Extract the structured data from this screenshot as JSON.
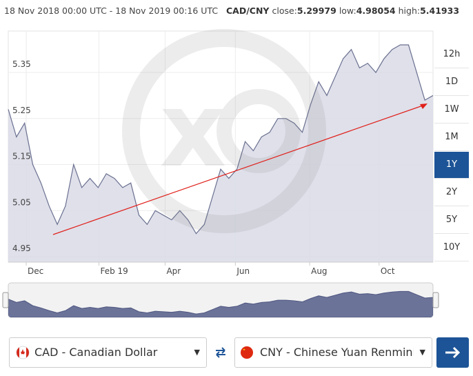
{
  "header": {
    "date_range": "18 Nov 2018 00:00 UTC - 18 Nov 2019 00:16 UTC",
    "pair": "CAD/CNY",
    "close_label": "close:",
    "close": "5.29979",
    "low_label": "low:",
    "low": "4.98054",
    "high_label": "high:",
    "high": "5.41933"
  },
  "chart_data": {
    "type": "area",
    "color": "#6a7090",
    "fill": "#d9dbe6",
    "grid": true,
    "values": [
      5.27,
      5.21,
      5.24,
      5.15,
      5.11,
      5.06,
      5.02,
      5.06,
      5.15,
      5.1,
      5.12,
      5.1,
      5.13,
      5.12,
      5.1,
      5.11,
      5.04,
      5.02,
      5.05,
      5.04,
      5.03,
      5.05,
      5.03,
      5.0,
      5.02,
      5.08,
      5.14,
      5.12,
      5.14,
      5.2,
      5.18,
      5.21,
      5.22,
      5.25,
      5.25,
      5.24,
      5.22,
      5.28,
      5.33,
      5.3,
      5.34,
      5.38,
      5.4,
      5.36,
      5.37,
      5.35,
      5.38,
      5.4,
      5.41,
      5.41,
      5.35,
      5.29,
      5.3
    ],
    "xlim": [
      0,
      52
    ],
    "xticks": [
      {
        "value": 2.2,
        "label": "Dec"
      },
      {
        "value": 11.1,
        "label": "Feb 19"
      },
      {
        "value": 19.2,
        "label": "Apr"
      },
      {
        "value": 27.8,
        "label": "Jun"
      },
      {
        "value": 36.9,
        "label": "Aug"
      },
      {
        "value": 45.4,
        "label": "Oct"
      }
    ],
    "ylim": [
      4.938,
      5.44
    ],
    "yticks": [
      4.95,
      5.05,
      5.15,
      5.25,
      5.35
    ]
  },
  "ranges": [
    "12h",
    "1D",
    "1W",
    "1M",
    "1Y",
    "2Y",
    "5Y",
    "10Y"
  ],
  "selected_range": "1Y",
  "from_currency": "CAD - Canadian Dollar",
  "to_currency": "CNY - Chinese Yuan Renminbi"
}
